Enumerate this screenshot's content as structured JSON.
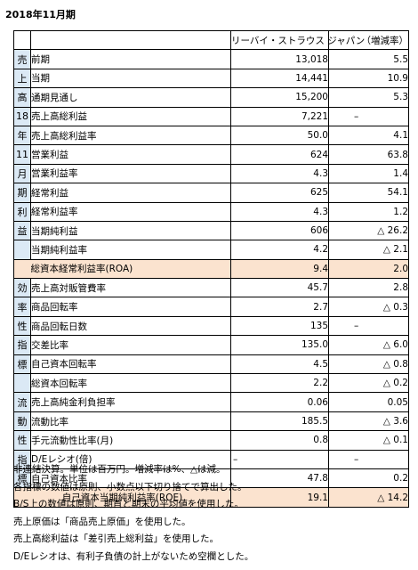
{
  "period": "2018年11月期",
  "header": {
    "company": "リーバイ・ストラウス ジャパン",
    "change": "（増減率）"
  },
  "sections": [
    {
      "chars": [
        "売",
        "上",
        "高"
      ],
      "rows": [
        {
          "label": "前期",
          "value": "13,018",
          "change": "5.5"
        },
        {
          "label": "当期",
          "value": "14,441",
          "change": "10.9"
        },
        {
          "label": "通期見通し",
          "value": "15,200",
          "change": "5.3"
        }
      ]
    },
    {
      "chars": [
        "18",
        "年",
        "11",
        "月",
        "期",
        "利",
        "益",
        ""
      ],
      "rows": [
        {
          "label": "売上高総利益",
          "value": "7,221",
          "change": "–"
        },
        {
          "label": "売上高総利益率",
          "value": "50.0",
          "change": "4.1"
        },
        {
          "label": "営業利益",
          "value": "624",
          "change": "63.8"
        },
        {
          "label": "営業利益率",
          "value": "4.3",
          "change": "1.4"
        },
        {
          "label": "経常利益",
          "value": "625",
          "change": "54.1"
        },
        {
          "label": "経常利益率",
          "value": "4.3",
          "change": "1.2"
        },
        {
          "label": "当期純利益",
          "value": "606",
          "change": "△ 26.2"
        },
        {
          "label": "当期純利益率",
          "value": "4.2",
          "change": "△ 2.1"
        }
      ]
    },
    {
      "highlight": {
        "label": "総資本経常利益率(ROA)",
        "value": "9.4",
        "change": "2.0"
      }
    },
    {
      "chars": [
        "効",
        "率",
        "性",
        "指",
        "標",
        "",
        ""
      ],
      "rows": [
        {
          "label": "売上高対販管費率",
          "value": "45.7",
          "change": "2.8"
        },
        {
          "label": "商品回転率",
          "value": "2.7",
          "change": "△ 0.3"
        },
        {
          "label": "商品回転日数",
          "value": "135",
          "change": "–"
        },
        {
          "label": "交差比率",
          "value": "135.0",
          "change": "△ 6.0"
        },
        {
          "label": "自己資本回転率",
          "value": "4.5",
          "change": "△ 0.8"
        },
        {
          "label": "総資本回転率",
          "value": "2.2",
          "change": "△ 0.2"
        }
      ]
    },
    {
      "chars": [
        "流",
        "動",
        "性",
        "指",
        "標"
      ],
      "rows": [
        {
          "label": "売上高純金利負担率",
          "value": "0.06",
          "change": "0.05"
        },
        {
          "label": "流動比率",
          "value": "185.5",
          "change": "△ 3.6"
        },
        {
          "label": "手元流動性比率(月)",
          "value": "0.8",
          "change": "△ 0.1"
        },
        {
          "label": "D/Eレシオ(倍)",
          "value": "–",
          "change": "–"
        },
        {
          "label": "自己資本比率",
          "value": "47.8",
          "change": "0.2"
        }
      ]
    },
    {
      "highlight": {
        "label": "自己資本当期純利益率(ROE)",
        "value": "19.1",
        "change": "△ 14.2"
      }
    }
  ],
  "notes": [
    "非連結決算。単位は百万円。増減率は%、△は減。",
    "各指標の数値は原則、小数点以下切り捨てで算出した。",
    "B/S上の数値は原則、期首と期末の平均値を使用した。",
    "売上原価は「商品売上原価」を使用した。",
    "売上高総利益は「差引売上総利益」を使用した。",
    "D/Eレシオは、有利子負債の計上がないため空欄とした。"
  ]
}
